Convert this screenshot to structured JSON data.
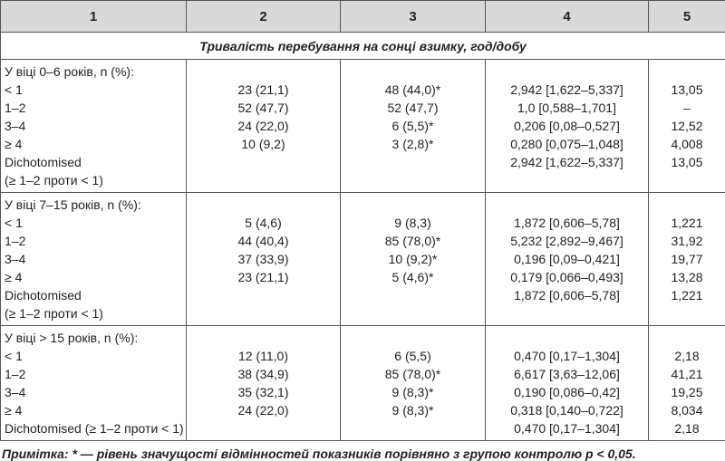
{
  "header": [
    "1",
    "2",
    "3",
    "4",
    "5"
  ],
  "section_title": "Тривалість перебування на сонці взимку, год/добу",
  "groups": [
    {
      "title": "У віці 0–6 років, n (%):",
      "rows": [
        {
          "label": [
            "< 1"
          ],
          "cells": [
            "23 (21,1)",
            "48 (44,0)*",
            "2,942 [1,622–5,337]",
            "13,05"
          ]
        },
        {
          "label": [
            "1–2"
          ],
          "cells": [
            "52 (47,7)",
            "52 (47,7)",
            "1,0 [0,588–1,701]",
            "–"
          ]
        },
        {
          "label": [
            "3–4"
          ],
          "cells": [
            "24 (22,0)",
            "6 (5,5)*",
            "0,206 [0,08–0,527]",
            "12,52"
          ]
        },
        {
          "label": [
            "≥ 4"
          ],
          "cells": [
            "10 (9,2)",
            "3 (2,8)*",
            "0,280 [0,075–1,048]",
            "4,008"
          ]
        },
        {
          "label": [
            "Dichotomised",
            "(≥ 1–2 проти < 1)"
          ],
          "cells": [
            null,
            null,
            "2,942 [1,622–5,337]",
            "13,05"
          ]
        }
      ]
    },
    {
      "title": "У віці 7–15 років, n (%):",
      "rows": [
        {
          "label": [
            "< 1"
          ],
          "cells": [
            "5 (4,6)",
            "9 (8,3)",
            "1,872 [0,606–5,78]",
            "1,221"
          ]
        },
        {
          "label": [
            "1–2"
          ],
          "cells": [
            "44 (40,4)",
            "85 (78,0)*",
            "5,232 [2,892–9,467]",
            "31,92"
          ]
        },
        {
          "label": [
            "3–4"
          ],
          "cells": [
            "37 (33,9)",
            "10 (9,2)*",
            "0,196 [0,09–0,421]",
            "19,77"
          ]
        },
        {
          "label": [
            "≥ 4"
          ],
          "cells": [
            "23 (21,1)",
            "5 (4,6)*",
            "0,179 [0,066–0,493]",
            "13,28"
          ]
        },
        {
          "label": [
            "Dichotomised",
            "(≥ 1–2 проти < 1)"
          ],
          "cells": [
            null,
            null,
            "1,872 [0,606–5,78]",
            "1,221"
          ]
        }
      ]
    },
    {
      "title": "У віці > 15 років, n (%):",
      "rows": [
        {
          "label": [
            "< 1"
          ],
          "cells": [
            "12 (11,0)",
            "6 (5,5)",
            "0,470 [0,17–1,304]",
            "2,18"
          ]
        },
        {
          "label": [
            "1–2"
          ],
          "cells": [
            "38 (34,9)",
            "85 (78,0)*",
            "6,617 [3,63–12,06]",
            "41,21"
          ]
        },
        {
          "label": [
            "3–4"
          ],
          "cells": [
            "35 (32,1)",
            "9 (8,3)*",
            "0,190 [0,086–0,42]",
            "19,25"
          ]
        },
        {
          "label": [
            "≥ 4"
          ],
          "cells": [
            "24 (22,0)",
            "9 (8,3)*",
            "0,318 [0,140–0,722]",
            "8,034"
          ]
        },
        {
          "label": [
            "Dichotomised (≥ 1–2 проти < 1)"
          ],
          "cells": [
            null,
            null,
            "0,470 [0,17–1,304]",
            "2,18"
          ]
        }
      ]
    }
  ],
  "footnote": "Примітка: * — рівень значущості відмінностей показників порівняно з групою контролю p < 0,05."
}
